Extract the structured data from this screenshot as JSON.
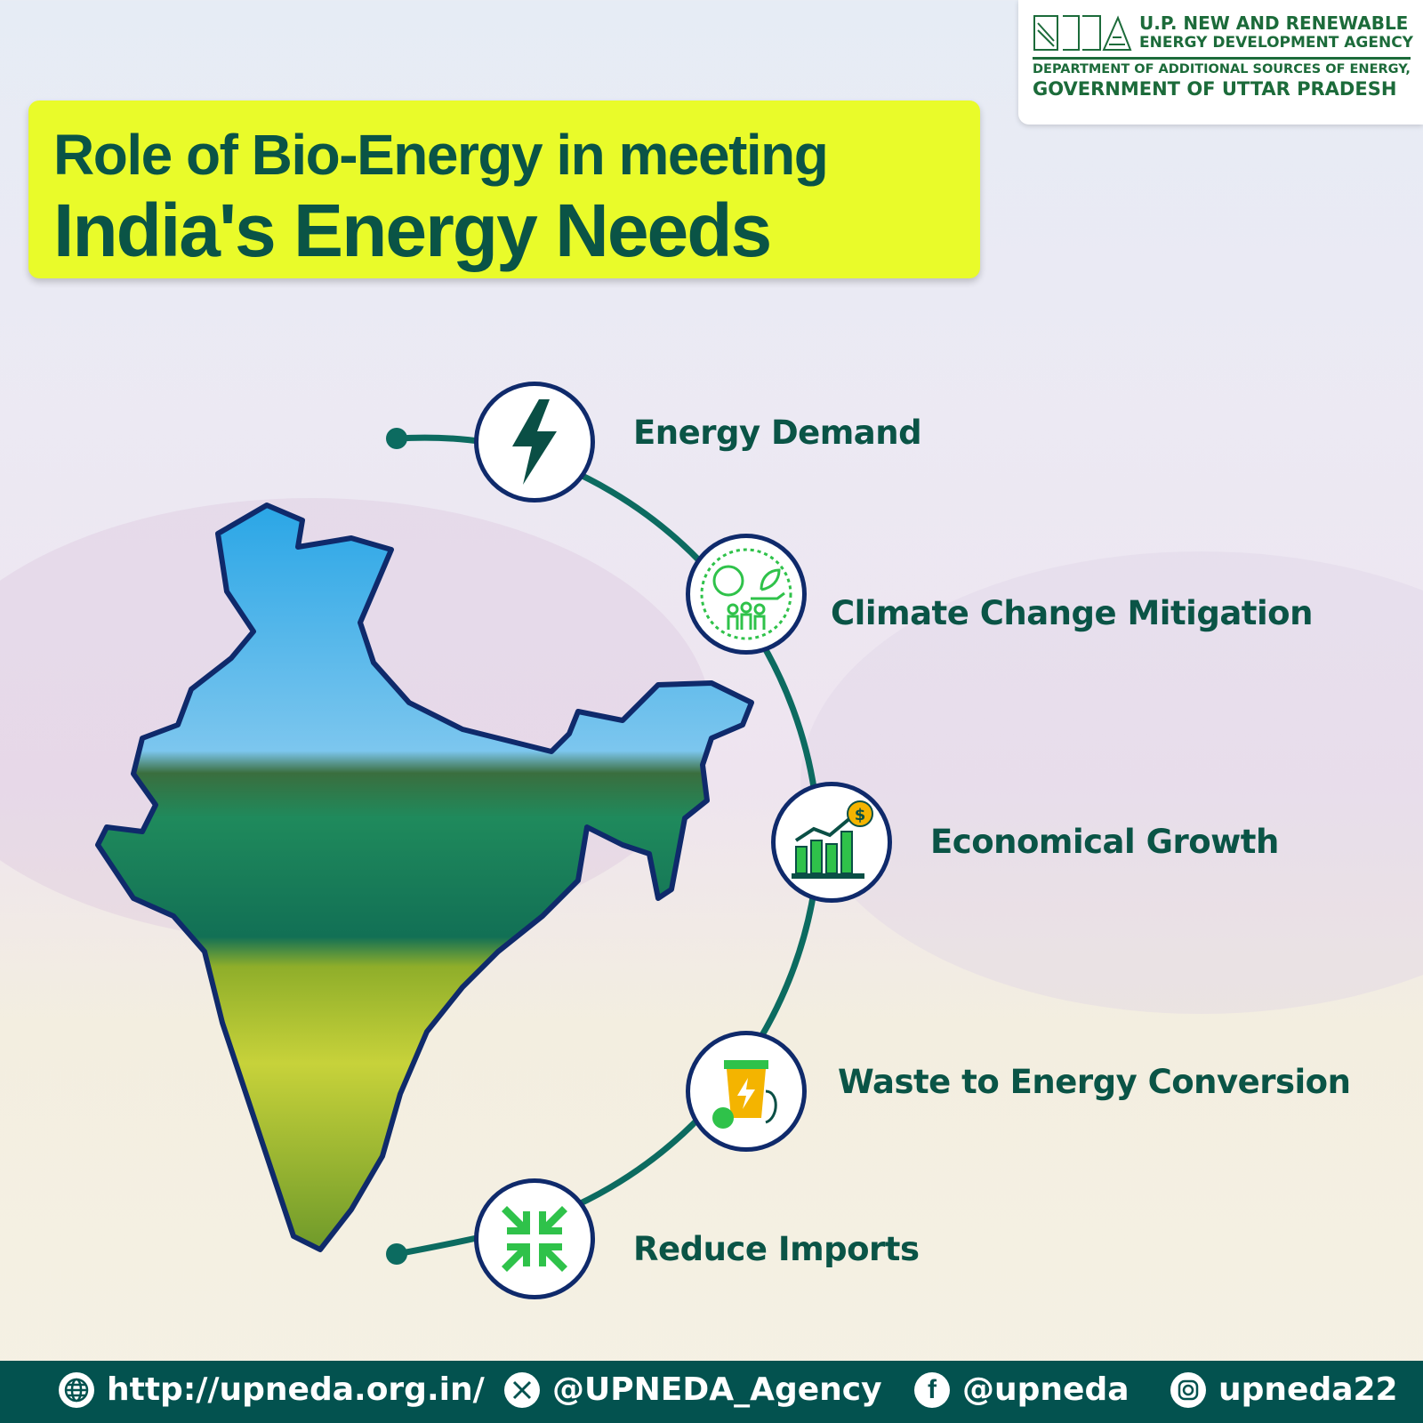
{
  "agency": {
    "name_line1": "U.P. NEW AND RENEWABLE",
    "name_line2": "ENERGY DEVELOPMENT AGENCY",
    "dept_line1": "DEPARTMENT OF ADDITIONAL SOURCES OF ENERGY,",
    "dept_line2": "GOVERNMENT OF UTTAR PRADESH",
    "logo_text": "NEDA"
  },
  "title": {
    "line1": "Role of Bio-Energy in meeting",
    "line2": "India's Energy Needs"
  },
  "items": [
    {
      "label": "Energy Demand",
      "icon": "lightning-bolt-icon"
    },
    {
      "label": "Climate Change Mitigation",
      "icon": "climate-people-plant-icon"
    },
    {
      "label": "Economical Growth",
      "icon": "growth-chart-dollar-icon"
    },
    {
      "label": "Waste to Energy Conversion",
      "icon": "bin-plug-energy-icon"
    },
    {
      "label": "Reduce Imports",
      "icon": "arrows-inward-icon"
    }
  ],
  "footer": {
    "website": "http://upneda.org.in/",
    "x": "@UPNEDA_Agency",
    "facebook": "@upneda",
    "instagram": "upneda22"
  },
  "colors": {
    "title_bg": "#e9fb2a",
    "title_text": "#0a5446",
    "footer_bg": "#03524f",
    "node_border": "#0f2a6b",
    "arc": "#0c6b60",
    "icon_green": "#2fc24a"
  }
}
